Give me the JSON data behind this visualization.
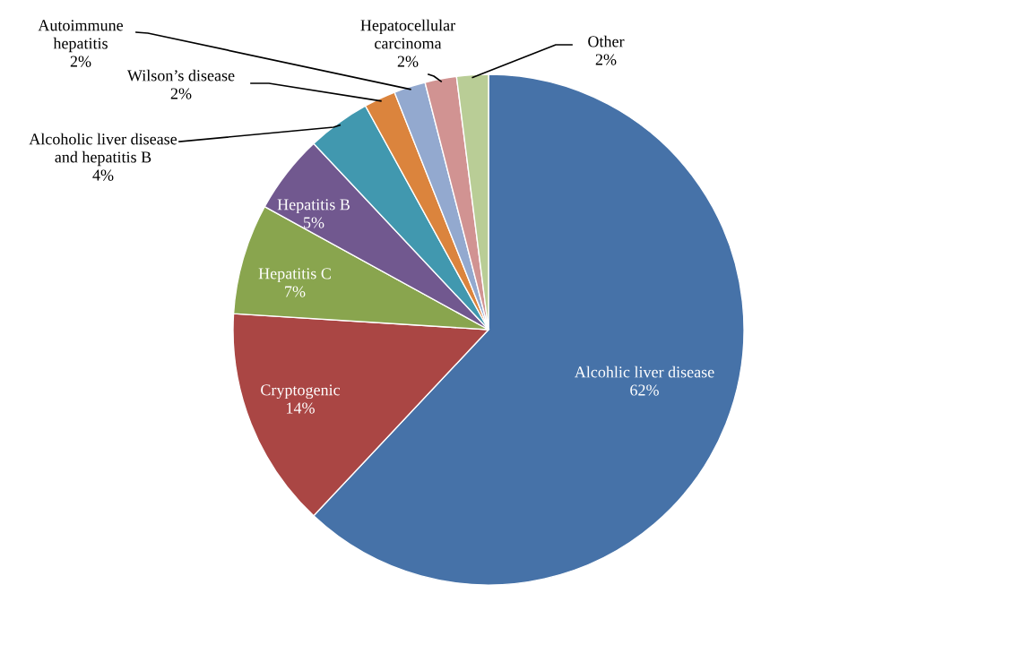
{
  "chart_data": {
    "type": "pie",
    "categories": [
      "Alcohlic liver disease",
      "Cryptogenic",
      "Hepatitis C",
      "Hepatitis B",
      "Alcoholic liver disease\nand hepatitis B",
      "Wilson’s disease",
      "Autoimmune\nhepatitis",
      "Hepatocellular\ncarcinoma",
      "Other"
    ],
    "values": [
      62,
      14,
      7,
      5,
      4,
      2,
      2,
      2,
      2
    ],
    "value_labels": [
      "62%",
      "14%",
      "7%",
      "5%",
      "4%",
      "2%",
      "2%",
      "2%",
      "2%"
    ],
    "colors": [
      "#4672a8",
      "#aa4644",
      "#89a54e",
      "#71588f",
      "#4198af",
      "#db843d",
      "#93a9cf",
      "#d19392",
      "#b9cd96"
    ],
    "legend": false
  }
}
